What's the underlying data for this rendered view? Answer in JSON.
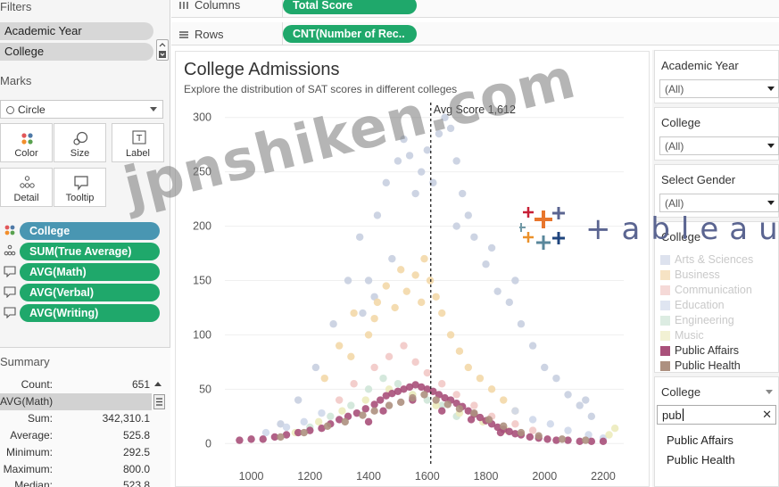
{
  "left": {
    "filters_title": "Filters",
    "filters": [
      "Academic Year",
      "College"
    ],
    "marks_title": "Marks",
    "mark_type": "Circle",
    "mark_buttons": [
      {
        "label": "Color",
        "icon": "color-dots-icon"
      },
      {
        "label": "Size",
        "icon": "size-circles-icon"
      },
      {
        "label": "Label",
        "icon": "label-t-icon"
      },
      {
        "label": "Detail",
        "icon": "detail-dots-icon"
      },
      {
        "label": "Tooltip",
        "icon": "tooltip-bubble-icon"
      }
    ],
    "shelf_pills": [
      {
        "label": "College",
        "color": "#4996b2",
        "icon": "color-dots-icon"
      },
      {
        "label": "SUM(True Average)",
        "color": "#1fa86b",
        "icon": "detail-dots-icon"
      },
      {
        "label": "AVG(Math)",
        "color": "#1fa86b",
        "icon": "tooltip-bubble-icon"
      },
      {
        "label": "AVG(Verbal)",
        "color": "#1fa86b",
        "icon": "tooltip-bubble-icon"
      },
      {
        "label": "AVG(Writing)",
        "color": "#1fa86b",
        "icon": "tooltip-bubble-icon"
      }
    ],
    "summary_title": "Summary",
    "summary": {
      "count_label": "Count:",
      "count": "651",
      "field": "AVG(Math)",
      "rows": [
        {
          "k": "Sum:",
          "v": "342,310.1"
        },
        {
          "k": "Average:",
          "v": "525.8"
        },
        {
          "k": "Minimum:",
          "v": "292.5"
        },
        {
          "k": "Maximum:",
          "v": "800.0"
        },
        {
          "k": "Median:",
          "v": "523.8"
        }
      ]
    }
  },
  "shelves": {
    "columns_label": "Columns",
    "columns_pill": "Total Score",
    "rows_label": "Rows",
    "rows_pill": "CNT(Number of Rec.."
  },
  "chart": {
    "title": "College Admissions",
    "subtitle": "Explore the distribution of SAT scores in different colleges",
    "ref_label": "Avg Score 1,612"
  },
  "chart_data": {
    "type": "scatter",
    "title": "College Admissions",
    "subtitle": "Explore the distribution of SAT scores in different colleges",
    "xlabel": "",
    "ylabel": "",
    "xlim": [
      910,
      2270
    ],
    "ylim": [
      -8,
      308
    ],
    "x_ticks": [
      1000,
      1200,
      1400,
      1600,
      1800,
      2000,
      2200
    ],
    "y_ticks": [
      0,
      50,
      100,
      150,
      200,
      250,
      300
    ],
    "reference_line": {
      "x": 1612,
      "label": "Avg Score 1,612"
    },
    "grid": "horizontal",
    "legend": "right",
    "series": [
      {
        "name": "Arts & Sciences",
        "color": "#c8cfe0",
        "points": [
          [
            1100,
            18
          ],
          [
            1160,
            40
          ],
          [
            1220,
            70
          ],
          [
            1280,
            110
          ],
          [
            1330,
            150
          ],
          [
            1370,
            190
          ],
          [
            1400,
            150
          ],
          [
            1430,
            210
          ],
          [
            1460,
            240
          ],
          [
            1480,
            170
          ],
          [
            1500,
            260
          ],
          [
            1520,
            280
          ],
          [
            1540,
            265
          ],
          [
            1560,
            230
          ],
          [
            1580,
            250
          ],
          [
            1600,
            270
          ],
          [
            1620,
            240
          ],
          [
            1640,
            285
          ],
          [
            1660,
            300
          ],
          [
            1680,
            290
          ],
          [
            1700,
            260
          ],
          [
            1720,
            230
          ],
          [
            1740,
            210
          ],
          [
            1760,
            190
          ],
          [
            1800,
            165
          ],
          [
            1840,
            140
          ],
          [
            1880,
            130
          ],
          [
            1920,
            110
          ],
          [
            1960,
            90
          ],
          [
            2000,
            70
          ],
          [
            2040,
            60
          ],
          [
            2080,
            45
          ],
          [
            2120,
            35
          ],
          [
            2160,
            25
          ],
          [
            1380,
            120
          ],
          [
            1420,
            135
          ],
          [
            1700,
            200
          ],
          [
            1820,
            180
          ],
          [
            1900,
            150
          ],
          [
            2140,
            40
          ]
        ]
      },
      {
        "name": "Business",
        "color": "#f3d8a9",
        "points": [
          [
            1250,
            60
          ],
          [
            1300,
            90
          ],
          [
            1350,
            120
          ],
          [
            1400,
            100
          ],
          [
            1430,
            130
          ],
          [
            1460,
            145
          ],
          [
            1490,
            125
          ],
          [
            1510,
            160
          ],
          [
            1530,
            140
          ],
          [
            1560,
            155
          ],
          [
            1590,
            170
          ],
          [
            1610,
            150
          ],
          [
            1630,
            135
          ],
          [
            1650,
            120
          ],
          [
            1680,
            100
          ],
          [
            1710,
            85
          ],
          [
            1740,
            70
          ],
          [
            1780,
            60
          ],
          [
            1820,
            50
          ],
          [
            1860,
            40
          ],
          [
            1900,
            30
          ],
          [
            1340,
            80
          ],
          [
            1420,
            115
          ],
          [
            1580,
            130
          ]
        ]
      },
      {
        "name": "Communication",
        "color": "#f2c9c6",
        "points": [
          [
            1300,
            40
          ],
          [
            1350,
            55
          ],
          [
            1420,
            70
          ],
          [
            1470,
            80
          ],
          [
            1520,
            90
          ],
          [
            1560,
            75
          ],
          [
            1600,
            65
          ],
          [
            1650,
            55
          ],
          [
            1700,
            45
          ],
          [
            1760,
            35
          ],
          [
            1820,
            25
          ],
          [
            1900,
            18
          ],
          [
            1960,
            12
          ]
        ]
      },
      {
        "name": "Education",
        "color": "#cfd8ea",
        "points": [
          [
            1050,
            10
          ],
          [
            1120,
            15
          ],
          [
            1180,
            20
          ],
          [
            1240,
            28
          ],
          [
            1900,
            30
          ],
          [
            1960,
            22
          ],
          [
            2020,
            18
          ],
          [
            2080,
            12
          ],
          [
            2150,
            8
          ],
          [
            2200,
            5
          ]
        ]
      },
      {
        "name": "Engineering",
        "color": "#cfe5d8",
        "points": [
          [
            1200,
            15
          ],
          [
            1270,
            25
          ],
          [
            1340,
            35
          ],
          [
            1400,
            50
          ],
          [
            1450,
            60
          ],
          [
            1500,
            55
          ],
          [
            1550,
            45
          ],
          [
            1600,
            40
          ],
          [
            1650,
            35
          ],
          [
            1700,
            25
          ]
        ]
      },
      {
        "name": "Music",
        "color": "#ecebbd",
        "points": [
          [
            1150,
            10
          ],
          [
            1230,
            20
          ],
          [
            1310,
            30
          ],
          [
            1390,
            40
          ],
          [
            1470,
            50
          ],
          [
            1550,
            45
          ],
          [
            1630,
            35
          ],
          [
            1710,
            28
          ],
          [
            1790,
            20
          ],
          [
            1870,
            12
          ],
          [
            2220,
            8
          ],
          [
            2240,
            14
          ]
        ]
      },
      {
        "name": "Public Affairs",
        "color": "#a9507a",
        "points": [
          [
            960,
            3
          ],
          [
            1000,
            4
          ],
          [
            1040,
            4
          ],
          [
            1080,
            6
          ],
          [
            1120,
            8
          ],
          [
            1160,
            10
          ],
          [
            1200,
            12
          ],
          [
            1240,
            14
          ],
          [
            1270,
            18
          ],
          [
            1300,
            22
          ],
          [
            1330,
            25
          ],
          [
            1360,
            28
          ],
          [
            1390,
            32
          ],
          [
            1420,
            36
          ],
          [
            1440,
            40
          ],
          [
            1460,
            44
          ],
          [
            1480,
            46
          ],
          [
            1500,
            48
          ],
          [
            1520,
            50
          ],
          [
            1540,
            52
          ],
          [
            1560,
            54
          ],
          [
            1580,
            52
          ],
          [
            1600,
            50
          ],
          [
            1620,
            48
          ],
          [
            1640,
            45
          ],
          [
            1660,
            42
          ],
          [
            1680,
            40
          ],
          [
            1700,
            37
          ],
          [
            1720,
            34
          ],
          [
            1740,
            30
          ],
          [
            1760,
            27
          ],
          [
            1780,
            24
          ],
          [
            1800,
            21
          ],
          [
            1820,
            18
          ],
          [
            1840,
            15
          ],
          [
            1860,
            13
          ],
          [
            1880,
            11
          ],
          [
            1900,
            9
          ],
          [
            1920,
            8
          ],
          [
            1950,
            6
          ],
          [
            1980,
            5
          ],
          [
            2010,
            4
          ],
          [
            2040,
            3
          ],
          [
            2080,
            3
          ],
          [
            2120,
            2
          ],
          [
            2160,
            2
          ],
          [
            2200,
            2
          ],
          [
            1400,
            20
          ],
          [
            1450,
            30
          ],
          [
            1550,
            40
          ],
          [
            1650,
            30
          ],
          [
            1750,
            22
          ],
          [
            1850,
            10
          ]
        ]
      },
      {
        "name": "Public Health",
        "color": "#ad9080",
        "points": [
          [
            1100,
            6
          ],
          [
            1180,
            10
          ],
          [
            1260,
            16
          ],
          [
            1320,
            20
          ],
          [
            1380,
            26
          ],
          [
            1420,
            30
          ],
          [
            1470,
            35
          ],
          [
            1510,
            38
          ],
          [
            1550,
            42
          ],
          [
            1590,
            45
          ],
          [
            1630,
            40
          ],
          [
            1670,
            36
          ],
          [
            1710,
            32
          ],
          [
            1760,
            28
          ],
          [
            1810,
            22
          ],
          [
            1860,
            16
          ],
          [
            1920,
            10
          ],
          [
            1980,
            7
          ],
          [
            2060,
            4
          ],
          [
            2140,
            3
          ]
        ]
      }
    ]
  },
  "right": {
    "filters": [
      {
        "title": "Academic Year",
        "value": "(All)"
      },
      {
        "title": "College",
        "value": "(All)"
      },
      {
        "title": "Select Gender",
        "value": "(All)"
      }
    ],
    "legend_title": "College",
    "legend": [
      {
        "label": "Arts & Sciences",
        "color": "#dde2ee",
        "active": false
      },
      {
        "label": "Business",
        "color": "#f6e3c4",
        "active": false
      },
      {
        "label": "Communication",
        "color": "#f5d9d7",
        "active": false
      },
      {
        "label": "Education",
        "color": "#dfe5f1",
        "active": false
      },
      {
        "label": "Engineering",
        "color": "#dcece2",
        "active": false
      },
      {
        "label": "Music",
        "color": "#f2f1d4",
        "active": false
      },
      {
        "label": "Public Affairs",
        "color": "#a9507a",
        "active": true
      },
      {
        "label": "Public Health",
        "color": "#ad9080",
        "active": true
      }
    ],
    "search_title": "College",
    "search_value": "pub",
    "search_options": [
      "Public Affairs",
      "Public Health"
    ]
  },
  "watermark": "jpnshiken.com",
  "brand": "+ableau"
}
